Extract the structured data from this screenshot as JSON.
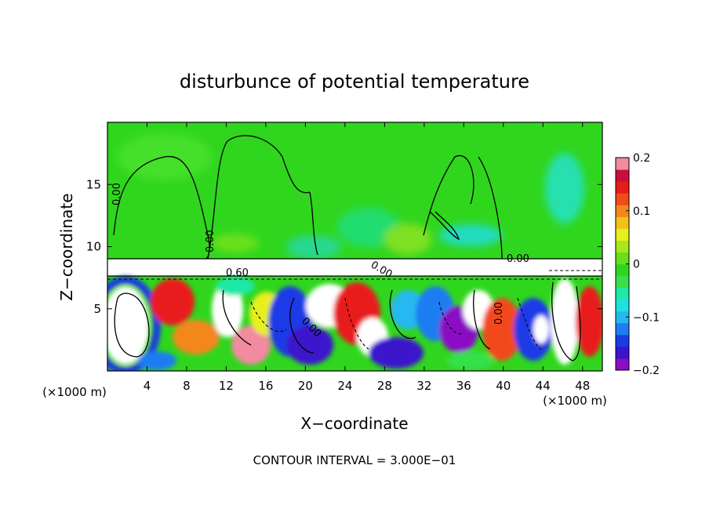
{
  "chart_data": {
    "type": "heatmap",
    "title": "disturbunce of potential temperature",
    "xlabel": "X−coordinate",
    "ylabel": "Z−coordinate",
    "x_unit_left": "(×1000 m)",
    "x_unit_right": "(×1000 m)",
    "xlim": [
      0,
      50
    ],
    "ylim": [
      0,
      20
    ],
    "x_ticks": [
      4,
      8,
      12,
      16,
      20,
      24,
      28,
      32,
      36,
      40,
      44,
      48
    ],
    "x_tick_labels": [
      "4",
      "8",
      "12",
      "16",
      "20",
      "24",
      "28",
      "32",
      "36",
      "40",
      "44",
      "48"
    ],
    "y_ticks": [
      5,
      10,
      15
    ],
    "y_tick_labels": [
      "5",
      "10",
      "15"
    ],
    "colorbar": {
      "min": -0.2,
      "max": 0.2,
      "tick_values": [
        0.2,
        0.1,
        0,
        -0.1,
        -0.2
      ],
      "tick_labels": [
        "0.2",
        "0.1",
        "0",
        "−0.1",
        "−0.2"
      ],
      "colors": [
        "#8a0dc4",
        "#3a14cc",
        "#1a3ae6",
        "#1f7cf2",
        "#25b8f0",
        "#21e0e0",
        "#1fe8a8",
        "#36e04a",
        "#30d61e",
        "#66e01a",
        "#a8e81a",
        "#e8f01a",
        "#f2c21a",
        "#f2881a",
        "#f24a1a",
        "#e81a1a",
        "#c80e3a",
        "#f28aa0"
      ]
    },
    "contour_labels": [
      "0.00",
      "0.00",
      "0.60",
      "0.00",
      "0.00",
      "0.00",
      "0.00"
    ],
    "annotation": "CONTOUR INTERVAL = 3.000E−01",
    "grid": false
  }
}
